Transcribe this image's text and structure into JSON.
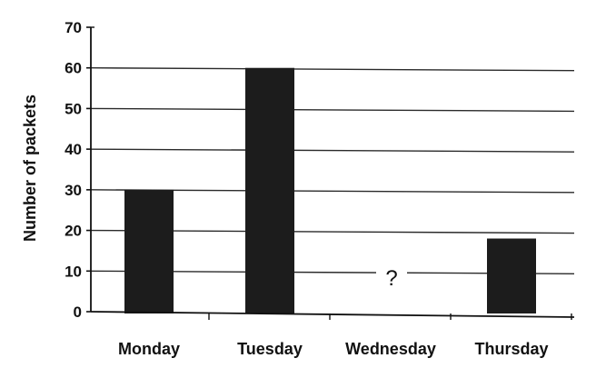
{
  "chart_data": {
    "type": "bar",
    "title": "",
    "xlabel": "",
    "ylabel": "Number of packets",
    "ylim": [
      0,
      70
    ],
    "yticks": [
      0,
      10,
      20,
      30,
      40,
      50,
      60,
      70
    ],
    "grid": true,
    "categories": [
      "Monday",
      "Tuesday",
      "Wednesday",
      "Thursday"
    ],
    "values": [
      30,
      60,
      null,
      18
    ],
    "unknown_marker": "?",
    "colors": {
      "bar": "#1c1c1c",
      "grid": "#2a2a2a",
      "axis": "#111111",
      "background": "#ffffff"
    }
  }
}
